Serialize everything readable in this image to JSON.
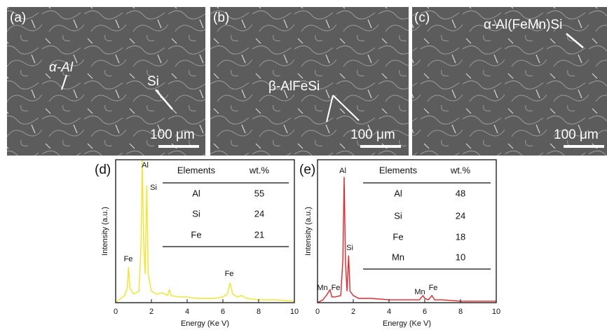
{
  "panels": [
    {
      "label": "(a)",
      "annotations": [
        "α-Al",
        "Si"
      ],
      "scale_bar": "100 μm"
    },
    {
      "label": "(b)",
      "annotations": [
        "β-AlFeSi"
      ],
      "scale_bar": "100 μm"
    },
    {
      "label": "(c)",
      "annotations": [
        "α-Al(FeMn)Si"
      ],
      "scale_bar": "100 μm"
    }
  ],
  "chart_data": [
    {
      "type": "line",
      "label": "(d)",
      "x_label": "Energy (Ke V)",
      "y_label": "Intensity (a.u.)",
      "color": "#f2e52a",
      "xlim": [
        0,
        10
      ],
      "xticks": [
        0,
        2,
        4,
        6,
        8,
        10
      ],
      "ylim": [
        0,
        100
      ],
      "x": [
        0,
        0.3,
        0.5,
        0.65,
        0.72,
        0.8,
        1.0,
        1.3,
        1.42,
        1.49,
        1.56,
        1.65,
        1.74,
        1.82,
        2.0,
        2.3,
        2.6,
        2.9,
        3.0,
        3.1,
        3.5,
        4.0,
        4.5,
        5.0,
        5.5,
        6.0,
        6.25,
        6.4,
        6.55,
        6.8,
        7.06,
        7.3,
        8.0,
        9.0,
        10
      ],
      "values": [
        0,
        3,
        5,
        10,
        25,
        10,
        6,
        8,
        40,
        100,
        45,
        20,
        82,
        20,
        8,
        6,
        7,
        5,
        9,
        5,
        4,
        4,
        3,
        3,
        3,
        4,
        6,
        14,
        6,
        4,
        5,
        3,
        2,
        2,
        1
      ],
      "peak_labels": [
        "Al",
        "Si",
        "Fe",
        "Fe"
      ],
      "table": {
        "header": [
          "Elements",
          "wt.%"
        ],
        "rows": [
          [
            "Al",
            55
          ],
          [
            "Si",
            24
          ],
          [
            "Fe",
            21
          ]
        ]
      }
    },
    {
      "type": "line",
      "label": "(e)",
      "x_label": "Energy (Ke V)",
      "y_label": "Intensity (a.u.)",
      "color": "#e8262a",
      "xlim": [
        0,
        10
      ],
      "xticks": [
        0,
        2,
        4,
        6,
        8,
        10
      ],
      "ylim": [
        0,
        100
      ],
      "x": [
        0,
        0.3,
        0.55,
        0.64,
        0.7,
        0.8,
        1.0,
        1.3,
        1.42,
        1.49,
        1.56,
        1.65,
        1.74,
        1.82,
        2.0,
        2.3,
        3.0,
        4.0,
        5.0,
        5.7,
        5.9,
        6.0,
        6.2,
        6.4,
        6.55,
        7.0,
        8.0,
        9.0,
        10
      ],
      "values": [
        0,
        2,
        6,
        8,
        9,
        4,
        4,
        5,
        30,
        88,
        30,
        8,
        33,
        8,
        5,
        3,
        3,
        2,
        2,
        2,
        5,
        3,
        2,
        5,
        2,
        2,
        1,
        1,
        1
      ],
      "peak_labels": [
        "Al",
        "Si",
        "Mn",
        "Fe",
        "Mn",
        "Fe"
      ],
      "table": {
        "header": [
          "Elements",
          "wt.%"
        ],
        "rows": [
          [
            "Al",
            48
          ],
          [
            "Si",
            24
          ],
          [
            "Fe",
            18
          ],
          [
            "Mn",
            10
          ]
        ]
      }
    }
  ]
}
